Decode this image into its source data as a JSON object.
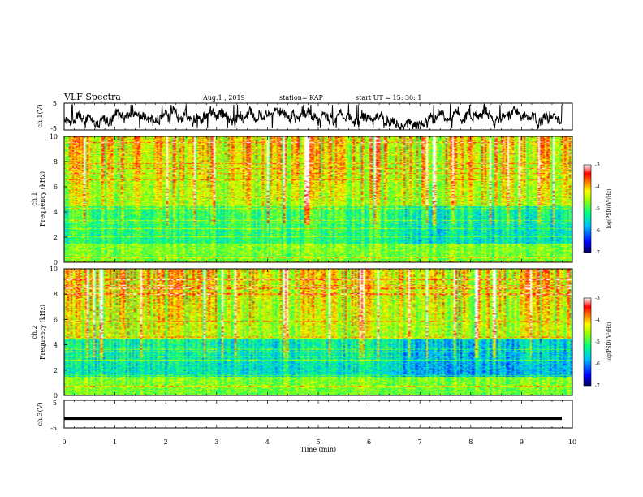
{
  "header": {
    "title": "VLF Spectra",
    "date": "Aug.1 , 2019",
    "station": "station= KAP",
    "start": "start UT = 15: 30: 1"
  },
  "chart_data": [
    {
      "type": "line",
      "ylabel": "ch.1(V)",
      "ylim": [
        -5,
        5
      ],
      "yticks": [
        "5",
        "-5"
      ],
      "xlim": [
        0,
        10
      ],
      "description_series": "noisy voltage waveform"
    },
    {
      "type": "heatmap",
      "ylabel": "Frequency (kHz)",
      "channel_label": "ch.1",
      "ylim": [
        0,
        10
      ],
      "yticks": [
        "0",
        "2",
        "4",
        "6",
        "8",
        "10"
      ],
      "xlim": [
        0,
        10
      ],
      "colorbar": {
        "label": "log(PSD)(V²/Hz)",
        "ticks": [
          "-3",
          "-4",
          "-5",
          "-6",
          "-7"
        ],
        "range": [
          -7,
          -3
        ]
      }
    },
    {
      "type": "heatmap",
      "ylabel": "Frequency (kHz)",
      "channel_label": "ch.2",
      "ylim": [
        0,
        10
      ],
      "yticks": [
        "0",
        "2",
        "4",
        "6",
        "8",
        "10"
      ],
      "xlim": [
        0,
        10
      ],
      "colorbar": {
        "label": "log(PSD)(V²/Hz)",
        "ticks": [
          "-3",
          "-4",
          "-5",
          "-6",
          "-7"
        ],
        "range": [
          -7,
          -3
        ]
      }
    },
    {
      "type": "line",
      "ylabel": "ch.3(V)",
      "ylim": [
        -5,
        5
      ],
      "yticks": [
        "5",
        "-5"
      ],
      "xlim": [
        0,
        10
      ],
      "value": -1.5
    }
  ],
  "xaxis": {
    "label": "Time (min)",
    "ticks": [
      "0",
      "1",
      "2",
      "3",
      "4",
      "5",
      "6",
      "7",
      "8",
      "9",
      "10"
    ]
  },
  "colors": {
    "scale": [
      "#000080",
      "#0000ff",
      "#00bfff",
      "#00ff80",
      "#7fff00",
      "#ffff00",
      "#ff8000",
      "#ff0000",
      "#ffffff"
    ]
  }
}
